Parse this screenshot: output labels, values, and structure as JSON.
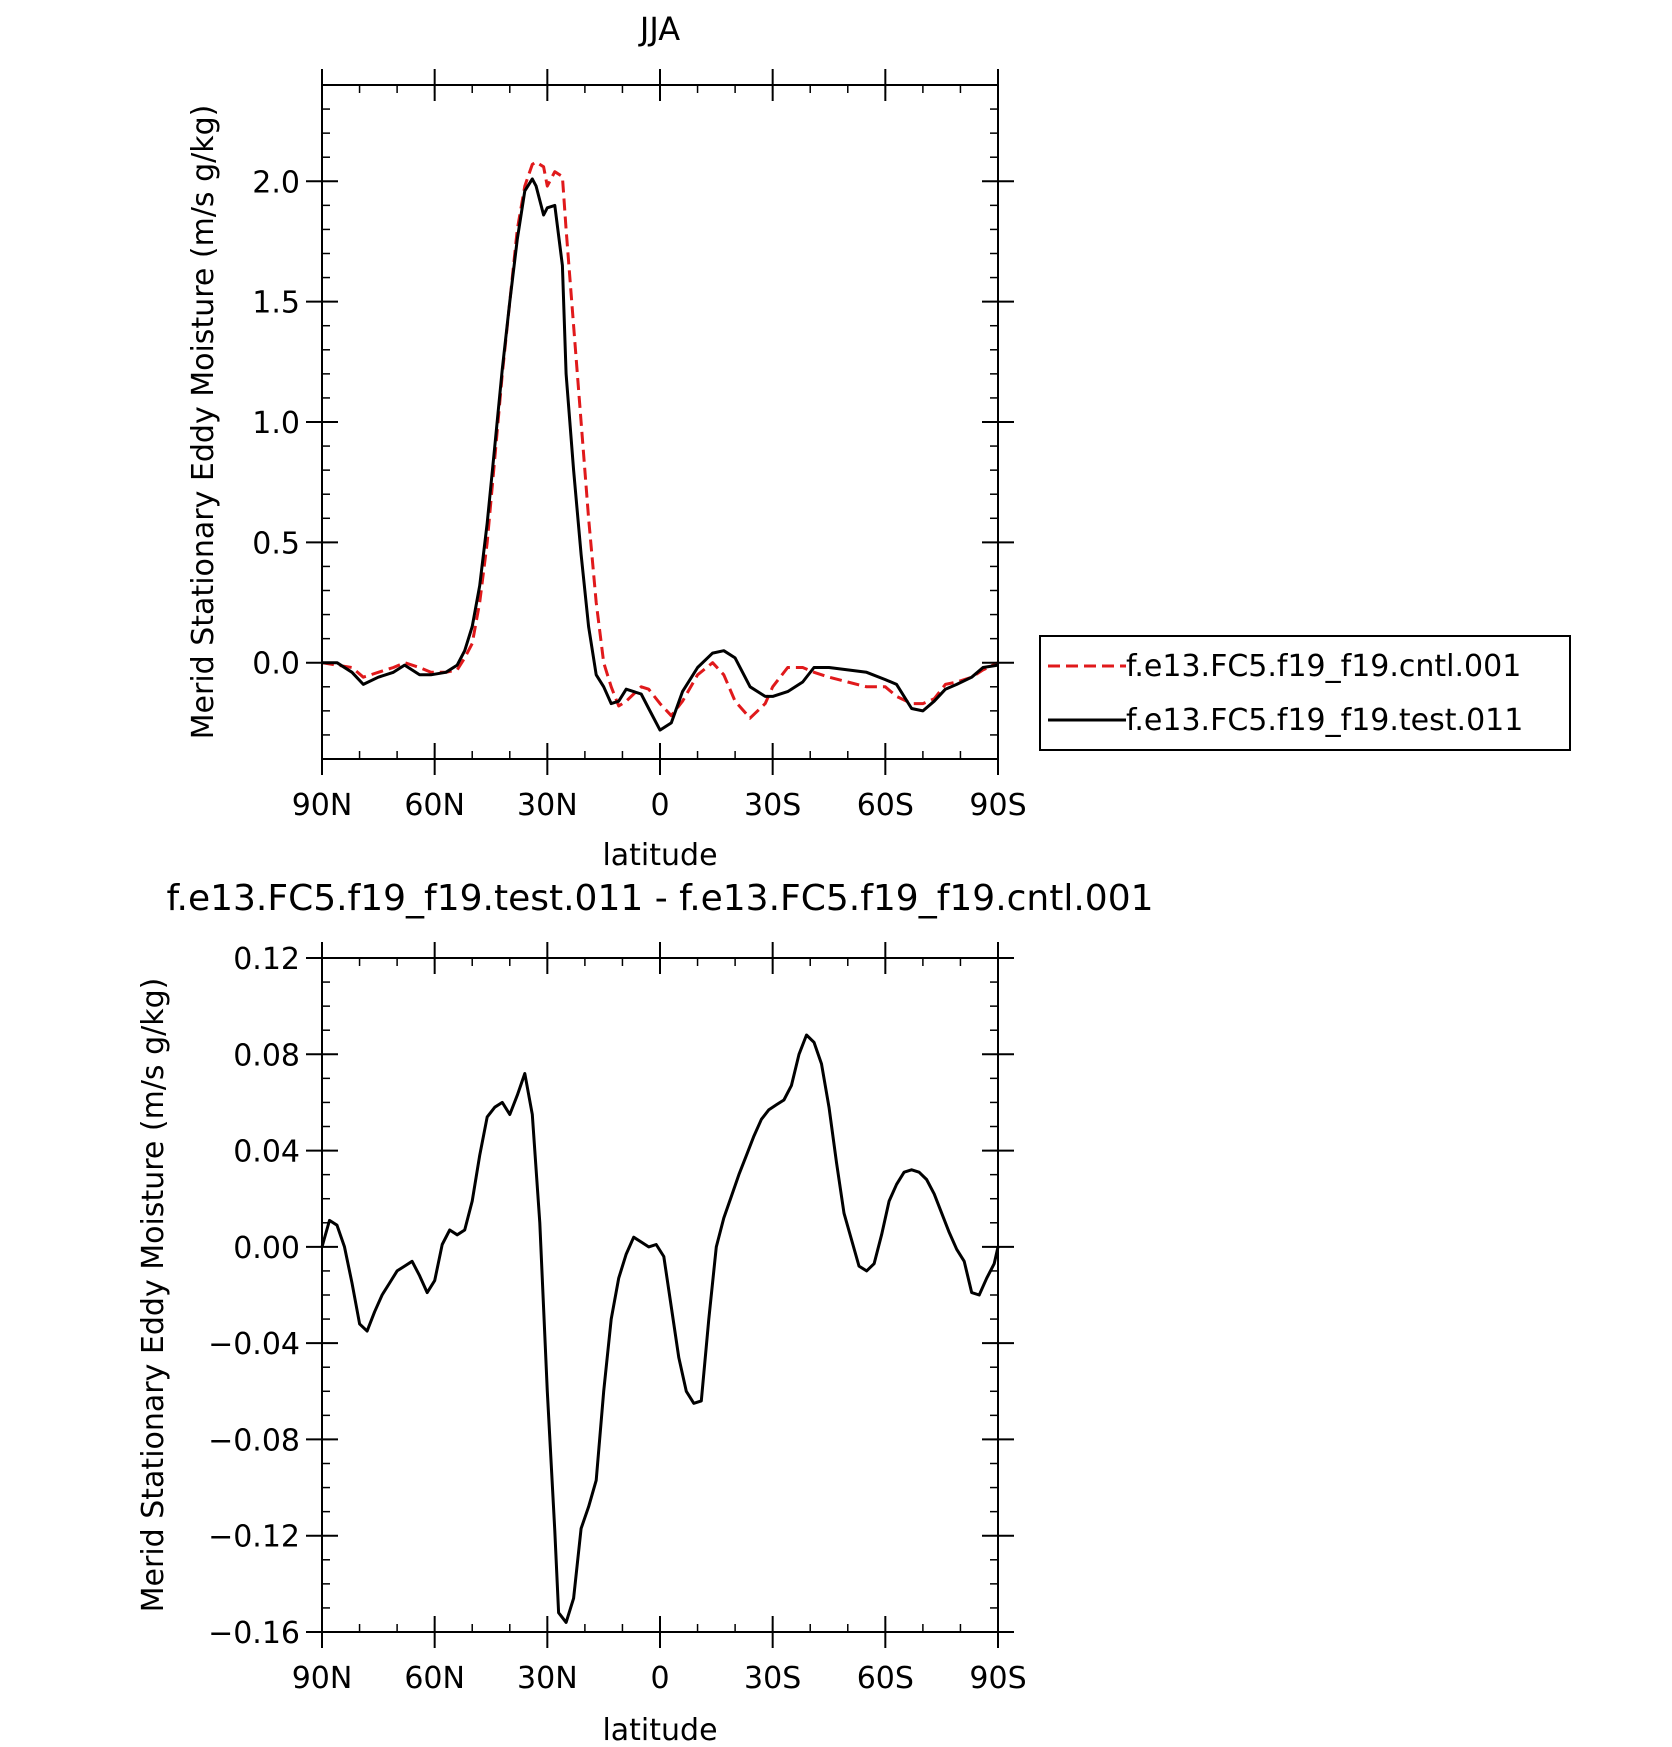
{
  "chart_data": [
    {
      "type": "line",
      "title": "JJA",
      "xlabel": "latitude",
      "ylabel": "Merid Stationary Eddy Moisture (m/s g/kg)",
      "x_ticks": [
        {
          "value": 90,
          "label": "90N"
        },
        {
          "value": 60,
          "label": "60N"
        },
        {
          "value": 30,
          "label": "30N"
        },
        {
          "value": 0,
          "label": "0"
        },
        {
          "value": -30,
          "label": "30S"
        },
        {
          "value": -60,
          "label": "60S"
        },
        {
          "value": -90,
          "label": "90S"
        }
      ],
      "y_ticks": [
        {
          "value": 0.0,
          "label": "0.0"
        },
        {
          "value": 0.5,
          "label": "0.5"
        },
        {
          "value": 1.0,
          "label": "1.0"
        },
        {
          "value": 1.5,
          "label": "1.5"
        },
        {
          "value": 2.0,
          "label": "2.0"
        }
      ],
      "xlim": [
        90,
        -90
      ],
      "ylim": [
        -0.4,
        2.4
      ],
      "legend_position": "right",
      "series": [
        {
          "name": "f.e13.FC5.f19_f19.cntl.001",
          "color": "#e0191b",
          "dash": "dashed",
          "x": [
            90,
            86,
            82,
            79,
            75,
            71,
            68,
            64,
            61,
            57,
            54,
            52,
            50,
            48,
            46,
            44,
            42,
            40,
            38,
            36,
            34,
            33,
            31,
            30,
            28,
            26,
            25,
            23,
            21,
            19,
            17,
            15,
            13,
            11,
            9,
            5,
            3,
            0,
            -3,
            -6,
            -10,
            -14,
            -17,
            -20,
            -24,
            -28,
            -30,
            -34,
            -38,
            -41,
            -45,
            -50,
            -55,
            -60,
            -63,
            -67,
            -70,
            -73,
            -76,
            -79,
            -83,
            -86,
            -90
          ],
          "y": [
            0.0,
            -0.01,
            -0.02,
            -0.06,
            -0.04,
            -0.02,
            0.0,
            -0.02,
            -0.04,
            -0.04,
            -0.03,
            0.02,
            0.08,
            0.25,
            0.5,
            0.85,
            1.2,
            1.5,
            1.8,
            1.98,
            2.07,
            2.08,
            2.06,
            1.98,
            2.04,
            2.02,
            1.8,
            1.4,
            1.0,
            0.6,
            0.25,
            0.0,
            -0.1,
            -0.18,
            -0.16,
            -0.1,
            -0.11,
            -0.17,
            -0.22,
            -0.16,
            -0.05,
            0.0,
            -0.05,
            -0.16,
            -0.23,
            -0.17,
            -0.1,
            -0.02,
            -0.02,
            -0.04,
            -0.06,
            -0.08,
            -0.1,
            -0.1,
            -0.14,
            -0.17,
            -0.17,
            -0.15,
            -0.09,
            -0.08,
            -0.06,
            -0.03,
            0.0
          ]
        },
        {
          "name": "f.e13.FC5.f19_f19.test.011",
          "color": "#000000",
          "dash": "solid",
          "x": [
            90,
            86,
            82,
            79,
            75,
            71,
            68,
            64,
            61,
            57,
            54,
            52,
            50,
            48,
            46,
            44,
            42,
            40,
            38,
            36,
            34,
            33,
            31,
            30,
            28,
            26,
            25,
            23,
            21,
            19,
            17,
            15,
            13,
            11,
            9,
            5,
            3,
            0,
            -3,
            -6,
            -10,
            -14,
            -17,
            -20,
            -24,
            -28,
            -30,
            -34,
            -38,
            -41,
            -45,
            -50,
            -55,
            -60,
            -63,
            -67,
            -70,
            -73,
            -76,
            -79,
            -83,
            -86,
            -90
          ],
          "y": [
            0.0,
            0.0,
            -0.04,
            -0.09,
            -0.06,
            -0.04,
            -0.01,
            -0.05,
            -0.05,
            -0.04,
            -0.01,
            0.05,
            0.15,
            0.32,
            0.58,
            0.9,
            1.22,
            1.5,
            1.76,
            1.96,
            2.01,
            1.98,
            1.86,
            1.89,
            1.9,
            1.65,
            1.2,
            0.8,
            0.45,
            0.15,
            -0.05,
            -0.1,
            -0.17,
            -0.16,
            -0.11,
            -0.13,
            -0.19,
            -0.28,
            -0.25,
            -0.12,
            -0.02,
            0.04,
            0.05,
            0.02,
            -0.1,
            -0.14,
            -0.14,
            -0.12,
            -0.08,
            -0.02,
            -0.02,
            -0.03,
            -0.04,
            -0.07,
            -0.09,
            -0.19,
            -0.2,
            -0.16,
            -0.11,
            -0.09,
            -0.06,
            -0.02,
            -0.01
          ]
        }
      ]
    },
    {
      "type": "line",
      "title": "f.e13.FC5.f19_f19.test.011 - f.e13.FC5.f19_f19.cntl.001",
      "xlabel": "latitude",
      "ylabel": "Merid Stationary Eddy Moisture (m/s g/kg)",
      "x_ticks": [
        {
          "value": 90,
          "label": "90N"
        },
        {
          "value": 60,
          "label": "60N"
        },
        {
          "value": 30,
          "label": "30N"
        },
        {
          "value": 0,
          "label": "0"
        },
        {
          "value": -30,
          "label": "30S"
        },
        {
          "value": -60,
          "label": "60S"
        },
        {
          "value": -90,
          "label": "90S"
        }
      ],
      "y_ticks": [
        {
          "value": 0.12,
          "label": "0.12"
        },
        {
          "value": 0.08,
          "label": "0.08"
        },
        {
          "value": 0.04,
          "label": "0.04"
        },
        {
          "value": 0.0,
          "label": "0.00"
        },
        {
          "value": -0.04,
          "label": "−0.04"
        },
        {
          "value": -0.08,
          "label": "−0.08"
        },
        {
          "value": -0.12,
          "label": "−0.12"
        },
        {
          "value": -0.16,
          "label": "−0.16"
        }
      ],
      "xlim": [
        90,
        -90
      ],
      "ylim": [
        -0.16,
        0.12
      ],
      "series": [
        {
          "color": "#000000",
          "dash": "solid",
          "x": [
            90,
            88,
            86,
            84,
            82,
            80,
            78,
            76,
            74,
            72,
            70,
            68,
            66,
            64,
            62,
            60,
            58,
            56,
            54,
            52,
            50,
            48,
            46,
            44,
            42,
            40,
            38,
            36,
            34,
            32,
            30,
            28,
            27,
            25,
            23,
            21,
            19,
            17,
            15,
            13,
            11,
            9,
            7,
            5,
            3,
            1,
            -1,
            -3,
            -5,
            -7,
            -9,
            -11,
            -13,
            -15,
            -17,
            -19,
            -21,
            -23,
            -25,
            -27,
            -29,
            -31,
            -33,
            -35,
            -37,
            -39,
            -41,
            -43,
            -45,
            -47,
            -49,
            -51,
            -53,
            -55,
            -57,
            -59,
            -61,
            -63,
            -65,
            -67,
            -69,
            -71,
            -73,
            -75,
            -77,
            -79,
            -81,
            -83,
            -85,
            -87,
            -89,
            -90
          ],
          "y": [
            0.0,
            0.011,
            0.009,
            0.0,
            -0.015,
            -0.032,
            -0.035,
            -0.027,
            -0.02,
            -0.015,
            -0.01,
            -0.008,
            -0.006,
            -0.012,
            -0.019,
            -0.014,
            0.001,
            0.007,
            0.005,
            0.007,
            0.019,
            0.038,
            0.054,
            0.058,
            0.06,
            0.055,
            0.063,
            0.072,
            0.055,
            0.01,
            -0.06,
            -0.118,
            -0.152,
            -0.156,
            -0.146,
            -0.117,
            -0.108,
            -0.097,
            -0.06,
            -0.03,
            -0.013,
            -0.003,
            0.004,
            0.002,
            0.0,
            0.001,
            -0.004,
            -0.025,
            -0.046,
            -0.06,
            -0.065,
            -0.064,
            -0.03,
            0.0,
            0.012,
            0.021,
            0.03,
            0.038,
            0.046,
            0.053,
            0.057,
            0.059,
            0.061,
            0.067,
            0.08,
            0.088,
            0.085,
            0.076,
            0.058,
            0.035,
            0.014,
            0.003,
            -0.008,
            -0.01,
            -0.007,
            0.005,
            0.019,
            0.026,
            0.031,
            0.032,
            0.031,
            0.028,
            0.022,
            0.014,
            0.006,
            -0.001,
            -0.006,
            -0.019,
            -0.02,
            -0.013,
            -0.007,
            0.0
          ]
        }
      ]
    }
  ]
}
